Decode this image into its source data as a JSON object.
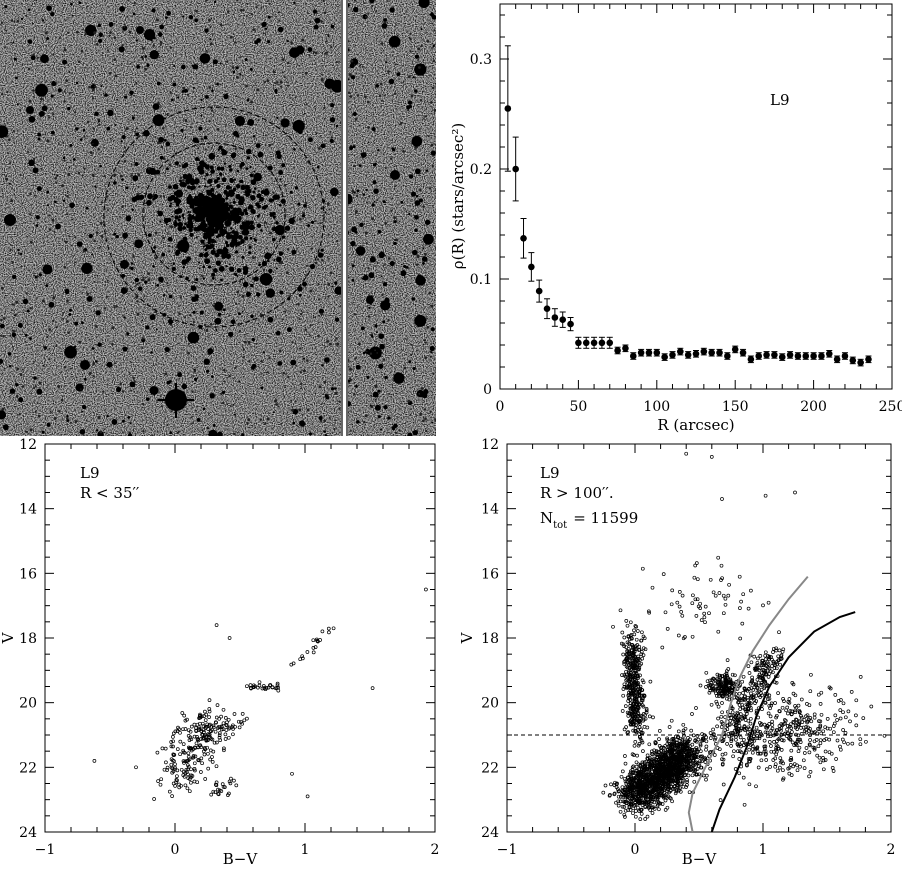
{
  "chart_data": [
    {
      "type": "image",
      "content": "grayscale sky image of star cluster L9 with two concentric dashed circles around the cluster center",
      "circles": [
        "inner dashed circle",
        "outer dashed circle"
      ]
    },
    {
      "type": "scatter",
      "xlabel": "R (arcsec)",
      "ylabel": "ρ(R) (stars/arcsec²)",
      "xlim": [
        0,
        250
      ],
      "ylim": [
        0,
        0.35
      ],
      "xticks": [
        0,
        50,
        100,
        150,
        200,
        250
      ],
      "yticks": [
        0,
        0.1,
        0.2,
        0.3
      ],
      "annotation": "L9",
      "series": [
        {
          "x": [
            5,
            10,
            15,
            20,
            25,
            30,
            35,
            40,
            45,
            50,
            55,
            60,
            65,
            70,
            75,
            80,
            85,
            90,
            95,
            100,
            105,
            110,
            115,
            120,
            125,
            130,
            135,
            140,
            145,
            150,
            155,
            160,
            165,
            170,
            175,
            180,
            185,
            190,
            195,
            200,
            205,
            210,
            215,
            220,
            225,
            230,
            235
          ],
          "y": [
            0.255,
            0.2,
            0.137,
            0.111,
            0.089,
            0.073,
            0.065,
            0.063,
            0.059,
            0.042,
            0.042,
            0.042,
            0.042,
            0.042,
            0.035,
            0.037,
            0.03,
            0.033,
            0.033,
            0.033,
            0.029,
            0.031,
            0.034,
            0.031,
            0.032,
            0.034,
            0.033,
            0.033,
            0.03,
            0.036,
            0.033,
            0.027,
            0.03,
            0.031,
            0.031,
            0.029,
            0.031,
            0.03,
            0.03,
            0.03,
            0.03,
            0.032,
            0.027,
            0.03,
            0.026,
            0.024,
            0.027
          ],
          "err": [
            0.057,
            0.029,
            0.018,
            0.013,
            0.01,
            0.009,
            0.008,
            0.007,
            0.006,
            0.005,
            0.005,
            0.005,
            0.005,
            0.005,
            0.003,
            0.003,
            0.003,
            0.003,
            0.003,
            0.003,
            0.003,
            0.003,
            0.003,
            0.003,
            0.003,
            0.003,
            0.003,
            0.003,
            0.003,
            0.003,
            0.003,
            0.003,
            0.003,
            0.003,
            0.003,
            0.003,
            0.003,
            0.003,
            0.003,
            0.003,
            0.003,
            0.003,
            0.003,
            0.003,
            0.003,
            0.003,
            0.003
          ]
        }
      ]
    },
    {
      "type": "scatter",
      "xlabel": "B−V",
      "ylabel": "V",
      "xlim": [
        -1,
        2
      ],
      "ylim": [
        24,
        12
      ],
      "xticks": [
        -1,
        0,
        1,
        2
      ],
      "yticks": [
        12,
        14,
        16,
        18,
        20,
        22,
        24
      ],
      "annotation_lines": [
        "L9",
        "R < 35′′"
      ],
      "sequences": [
        {
          "part": "main sequence",
          "points": [
            [
              0.02,
              22.6
            ],
            [
              0.1,
              22.0
            ],
            [
              0.15,
              21.5
            ],
            [
              0.2,
              21.1
            ],
            [
              0.25,
              20.8
            ],
            [
              0.35,
              20.5
            ]
          ],
          "count": 260,
          "spread": [
            0.22,
            0.55
          ]
        },
        {
          "part": "red giant branch",
          "points": [
            [
              0.35,
              22.8
            ],
            [
              0.4,
              22.5
            ]
          ],
          "count": 20,
          "spread": [
            0.06,
            0.2
          ]
        },
        {
          "part": "turn-off / clump",
          "points": [
            [
              0.55,
              19.55
            ],
            [
              0.8,
              19.5
            ]
          ],
          "count": 28,
          "spread": [
            0.08,
            0.12
          ]
        },
        {
          "part": "upper giant branch",
          "points": [
            [
              0.85,
              19.1
            ],
            [
              0.95,
              18.7
            ],
            [
              1.05,
              18.4
            ],
            [
              1.1,
              18.1
            ],
            [
              1.2,
              17.7
            ]
          ],
          "count": 18,
          "spread": [
            0.03,
            0.1
          ]
        }
      ],
      "isolated_points": [
        [
          1.22,
          17.7
        ],
        [
          0.32,
          17.6
        ],
        [
          0.42,
          18.0
        ],
        [
          1.93,
          16.5
        ],
        [
          1.52,
          19.55
        ],
        [
          -0.62,
          21.8
        ],
        [
          -0.3,
          22.0
        ],
        [
          1.02,
          22.9
        ],
        [
          0.9,
          22.2
        ]
      ]
    },
    {
      "type": "scatter",
      "xlabel": "B−V",
      "ylabel": "V",
      "xlim": [
        -1,
        2
      ],
      "ylim": [
        24,
        12
      ],
      "xticks": [
        -1,
        0,
        1,
        2
      ],
      "yticks": [
        12,
        14,
        16,
        18,
        20,
        22,
        24
      ],
      "annotation_lines": [
        "L9",
        "R > 100′′.",
        "N",
        "tot",
        "= 11599"
      ],
      "hline": 21.0,
      "isochrones": [
        {
          "color": "#888888",
          "points": [
            [
              0.45,
              24.0
            ],
            [
              0.42,
              23.4
            ],
            [
              0.45,
              22.8
            ],
            [
              0.55,
              22.0
            ],
            [
              0.68,
              21.0
            ],
            [
              0.75,
              20.0
            ],
            [
              0.82,
              19.2
            ],
            [
              0.92,
              18.4
            ],
            [
              1.05,
              17.6
            ],
            [
              1.2,
              16.8
            ],
            [
              1.35,
              16.1
            ]
          ]
        },
        {
          "color": "#000000",
          "points": [
            [
              0.6,
              24.0
            ],
            [
              0.66,
              23.3
            ],
            [
              0.78,
              22.3
            ],
            [
              0.88,
              21.3
            ],
            [
              0.95,
              20.4
            ],
            [
              1.05,
              19.5
            ],
            [
              1.2,
              18.6
            ],
            [
              1.4,
              17.8
            ],
            [
              1.6,
              17.35
            ],
            [
              1.72,
              17.2
            ]
          ]
        }
      ],
      "sequences": [
        {
          "part": "main sequence",
          "points": [
            [
              0.0,
              23.0
            ],
            [
              0.1,
              22.6
            ],
            [
              0.2,
              22.2
            ],
            [
              0.3,
              21.8
            ],
            [
              0.4,
              21.4
            ]
          ],
          "count": 1500,
          "spread": [
            0.2,
            0.55
          ]
        },
        {
          "part": "blue main sequence",
          "points": [
            [
              -0.02,
              18.0
            ],
            [
              -0.02,
              19.0
            ],
            [
              0.0,
              20.0
            ],
            [
              0.02,
              21.0
            ]
          ],
          "count": 400,
          "spread": [
            0.08,
            0.6
          ]
        },
        {
          "part": "red clump",
          "points": [
            [
              0.7,
              19.5
            ]
          ],
          "count": 180,
          "spread": [
            0.12,
            0.4
          ]
        },
        {
          "part": "red giant branch",
          "points": [
            [
              0.75,
              21.0
            ],
            [
              0.85,
              20.3
            ],
            [
              0.95,
              19.6
            ],
            [
              1.0,
              19.0
            ],
            [
              1.1,
              18.5
            ]
          ],
          "count": 250,
          "spread": [
            0.13,
            0.4
          ]
        },
        {
          "part": "field",
          "points": [
            [
              0.9,
              21.5
            ],
            [
              1.3,
              20.5
            ]
          ],
          "count": 450,
          "spread": [
            0.55,
            1.2
          ]
        },
        {
          "part": "bright field",
          "points": [
            [
              0.4,
              17.5
            ],
            [
              0.6,
              16.5
            ]
          ],
          "count": 70,
          "spread": [
            0.5,
            1.3
          ]
        }
      ],
      "isolated_points": [
        [
          0.4,
          12.3
        ],
        [
          0.6,
          12.4
        ],
        [
          1.02,
          13.6
        ],
        [
          0.68,
          13.7
        ],
        [
          1.25,
          13.5
        ]
      ]
    }
  ]
}
